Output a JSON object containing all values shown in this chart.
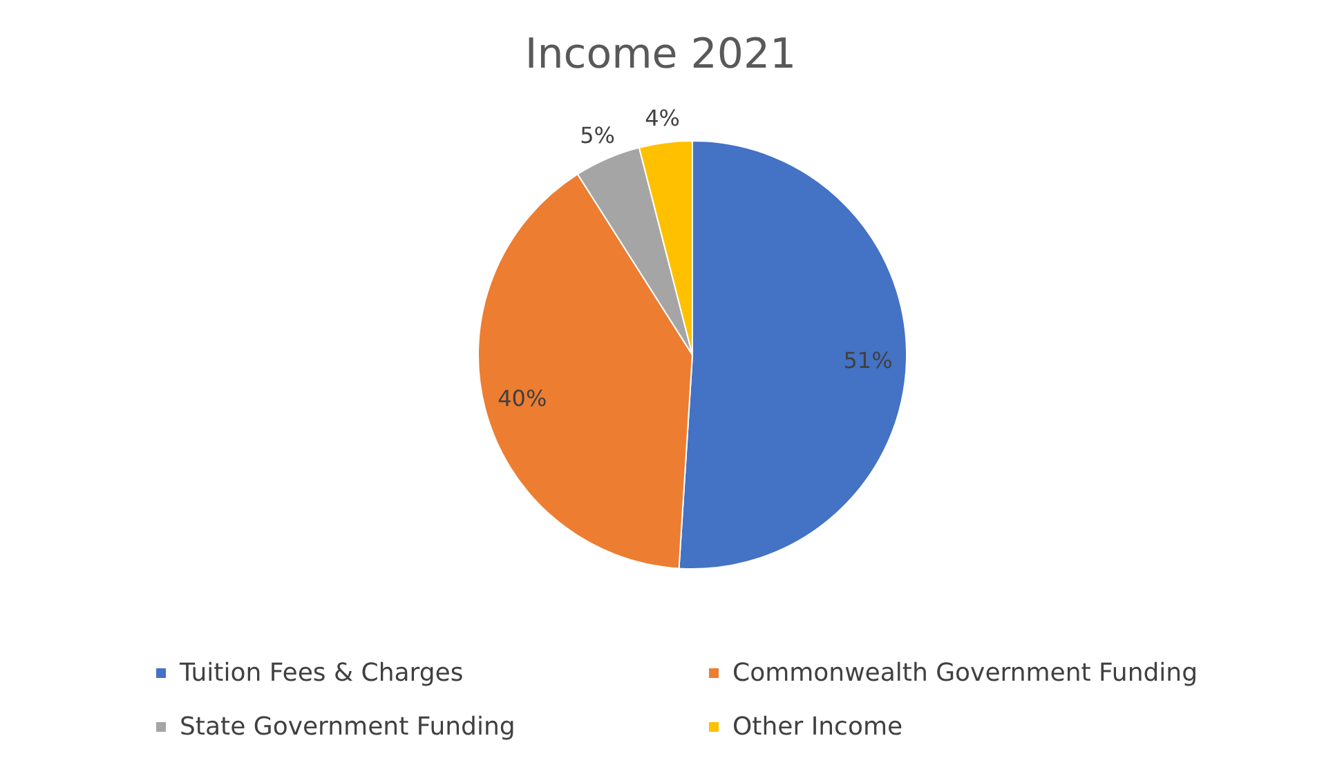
{
  "chart_data": {
    "type": "pie",
    "title": "Income 2021",
    "categories": [
      "Tuition Fees & Charges",
      "Commonwealth Government Funding",
      "State Government Funding",
      "Other Income"
    ],
    "values": [
      51,
      40,
      5,
      4
    ],
    "value_labels": [
      "51%",
      "40%",
      "5%",
      "4%"
    ],
    "colors": [
      "#4472c4",
      "#ed7d31",
      "#a5a5a5",
      "#ffc000"
    ],
    "legend": "bottom"
  }
}
